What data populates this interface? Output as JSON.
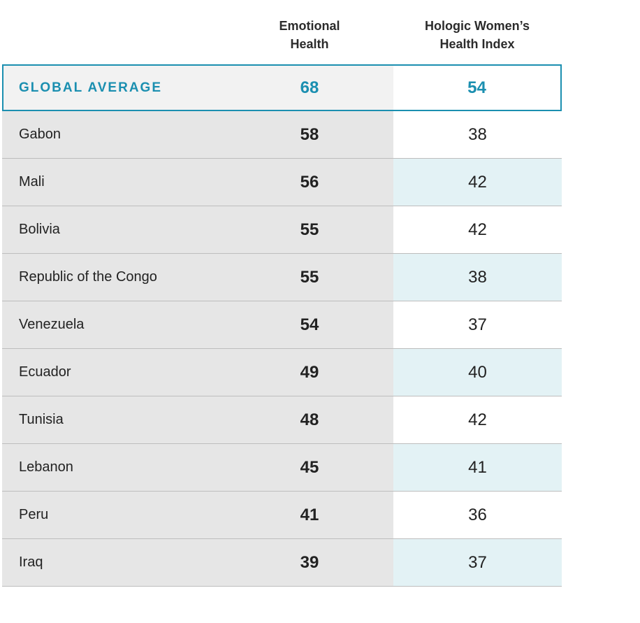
{
  "chart_data": {
    "type": "table",
    "columns": [
      "Emotional Health",
      "Hologic Women’s Health Index"
    ],
    "column_header_lines": [
      [
        "Emotional",
        "Health"
      ],
      [
        "Hologic Women’s",
        "Health Index"
      ]
    ],
    "global": {
      "label": "GLOBAL AVERAGE",
      "emotional_health": 68,
      "whi": 54
    },
    "rows": [
      {
        "country": "Gabon",
        "emotional_health": 58,
        "whi": 38
      },
      {
        "country": "Mali",
        "emotional_health": 56,
        "whi": 42
      },
      {
        "country": "Bolivia",
        "emotional_health": 55,
        "whi": 42
      },
      {
        "country": "Republic of the Congo",
        "emotional_health": 55,
        "whi": 38
      },
      {
        "country": "Venezuela",
        "emotional_health": 54,
        "whi": 37
      },
      {
        "country": "Ecuador",
        "emotional_health": 49,
        "whi": 40
      },
      {
        "country": "Tunisia",
        "emotional_health": 48,
        "whi": 42
      },
      {
        "country": "Lebanon",
        "emotional_health": 45,
        "whi": 41
      },
      {
        "country": "Peru",
        "emotional_health": 41,
        "whi": 36
      },
      {
        "country": "Iraq",
        "emotional_health": 39,
        "whi": 37
      }
    ]
  },
  "colors": {
    "accent": "#1b8fb0",
    "row_shade": "#e6e6e6",
    "index_shade": "#e3f2f5"
  }
}
